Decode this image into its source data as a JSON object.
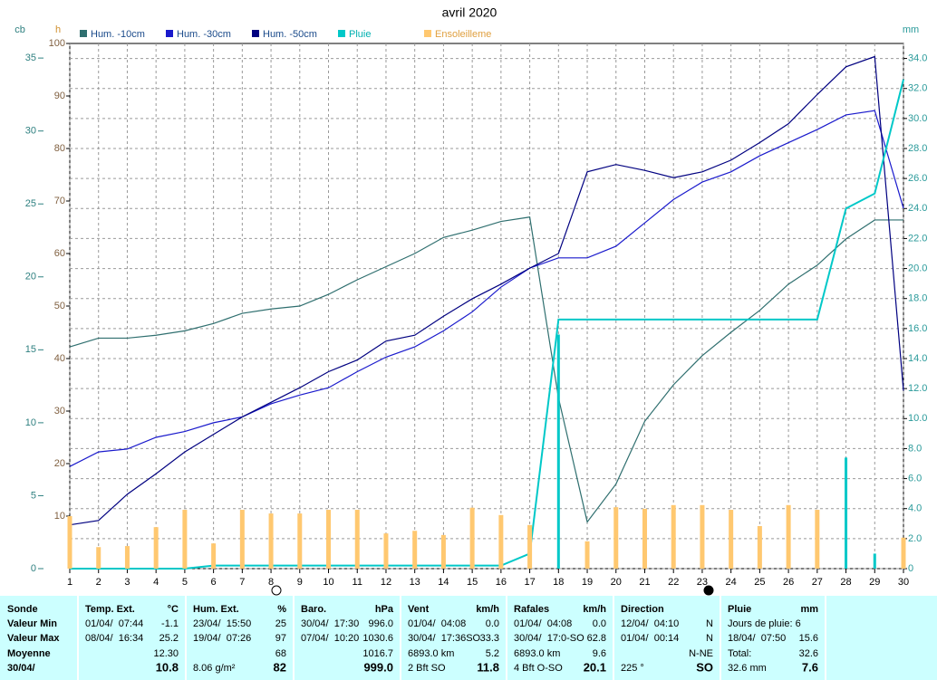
{
  "chart_data": {
    "type": "line",
    "title": "avril 2020",
    "ylabel": "cb",
    "y3label": "h",
    "y2label": "mm",
    "x": [
      1,
      2,
      3,
      4,
      5,
      6,
      7,
      8,
      9,
      10,
      11,
      12,
      13,
      14,
      15,
      16,
      17,
      18,
      19,
      20,
      21,
      22,
      23,
      24,
      25,
      26,
      27,
      28,
      29,
      30
    ],
    "xlim": [
      1,
      30
    ],
    "ylim": [
      0,
      36
    ],
    "yticks": [
      0,
      5,
      10,
      15,
      20,
      25,
      30,
      35
    ],
    "y3lim": [
      0,
      100
    ],
    "y3ticks": [
      10,
      20,
      30,
      40,
      50,
      60,
      70,
      80,
      90,
      100
    ],
    "y2lim": [
      0,
      35
    ],
    "y2ticks": [
      0,
      {
        "value": 2,
        "label": "2.0"
      },
      {
        "value": 4,
        "label": "4.0"
      },
      {
        "value": 6,
        "label": "6.0"
      },
      {
        "value": 8,
        "label": "8.0"
      },
      {
        "value": 10,
        "label": "10.0"
      },
      {
        "value": 12,
        "label": "12.0"
      },
      {
        "value": 14,
        "label": "14.0"
      },
      {
        "value": 16,
        "label": "16.0"
      },
      {
        "value": 18,
        "label": "18.0"
      },
      {
        "value": 20,
        "label": "20.0"
      },
      {
        "value": 22,
        "label": "22.0"
      },
      {
        "value": 24,
        "label": "24.0"
      },
      {
        "value": 26,
        "label": "26.0"
      },
      {
        "value": 28,
        "label": "28.0"
      },
      {
        "value": 30,
        "label": "30.0"
      },
      {
        "value": 32,
        "label": "32.0"
      },
      {
        "value": 34,
        "label": "34.0"
      }
    ],
    "grid": true,
    "series": [
      {
        "name": "Hum. -10cm",
        "color": "#2f6f6f",
        "type": "line",
        "values": [
          15.2,
          15.8,
          15.8,
          16.0,
          16.3,
          16.8,
          17.5,
          17.8,
          18.0,
          18.8,
          19.8,
          20.7,
          21.6,
          22.7,
          23.2,
          23.8,
          24.1,
          11.7,
          3.2,
          5.8,
          10.1,
          12.6,
          14.6,
          16.2,
          17.7,
          19.5,
          20.8,
          22.6,
          23.9,
          23.9
        ]
      },
      {
        "name": "Hum. -30cm",
        "color": "#1a1acc",
        "type": "line",
        "values": [
          7.0,
          8.0,
          8.2,
          9.0,
          9.4,
          10.0,
          10.4,
          11.3,
          11.9,
          12.4,
          13.5,
          14.5,
          15.2,
          16.3,
          17.6,
          19.3,
          20.6,
          21.3,
          21.3,
          22.1,
          23.7,
          25.3,
          26.5,
          27.2,
          28.3,
          29.2,
          30.1,
          31.1,
          31.4,
          24.7
        ]
      },
      {
        "name": "Hum. -50cm",
        "color": "#000080",
        "type": "line",
        "values": [
          3.0,
          3.3,
          5.1,
          6.5,
          8.0,
          9.2,
          10.4,
          11.4,
          12.4,
          13.5,
          14.3,
          15.6,
          16.0,
          17.3,
          18.5,
          19.5,
          20.6,
          21.6,
          27.2,
          27.7,
          27.3,
          26.8,
          27.2,
          28.0,
          29.2,
          30.5,
          32.5,
          34.4,
          35.1,
          12.2
        ]
      },
      {
        "name": "Pluie",
        "color": "#00c8c8",
        "type": "line",
        "axis": "y2",
        "values": [
          0,
          0,
          0,
          0,
          0,
          0.2,
          0.2,
          0.2,
          0.2,
          0.2,
          0.2,
          0.2,
          0.2,
          0.2,
          0.2,
          0.2,
          1.0,
          16.6,
          16.6,
          16.6,
          16.6,
          16.6,
          16.6,
          16.6,
          16.6,
          16.6,
          16.6,
          24.0,
          25.0,
          32.6
        ],
        "bar_values": [
          null,
          null,
          null,
          null,
          null,
          null,
          null,
          null,
          null,
          null,
          null,
          null,
          null,
          null,
          null,
          null,
          null,
          15.6,
          null,
          null,
          null,
          null,
          null,
          null,
          null,
          null,
          null,
          7.4,
          1.0,
          null
        ]
      },
      {
        "name": "Ensoleilleme",
        "color": "#ffc870",
        "type": "bar",
        "axis": "y3",
        "values": [
          10.0,
          4.1,
          4.3,
          7.9,
          11.2,
          4.8,
          11.2,
          10.5,
          10.5,
          11.2,
          11.2,
          6.7,
          7.2,
          6.4,
          11.6,
          10.2,
          8.3,
          0,
          5.2,
          11.7,
          11.4,
          12.1,
          12.1,
          11.2,
          8.1,
          12.1,
          11.2,
          0,
          0,
          5.9
        ]
      }
    ]
  },
  "table": {
    "labels": [
      "Sonde",
      "Valeur Min",
      "Valeur Max",
      "Moyenne",
      "30/04/"
    ],
    "columns": [
      {
        "header": "Temp. Ext.",
        "unit": "°C",
        "rows": [
          {
            "left": "01/04/  07:44",
            "right": "-1.1"
          },
          {
            "left": "08/04/  16:34",
            "right": "25.2"
          },
          {
            "right": "12.30"
          },
          {
            "right": "10.8"
          }
        ]
      },
      {
        "header": "Hum. Ext.",
        "unit": "%",
        "rows": [
          {
            "left": "23/04/  15:50",
            "right": "25"
          },
          {
            "left": "19/04/  07:26",
            "right": "97"
          },
          {
            "right": "68"
          },
          {
            "left": "8.06 g/m²",
            "right": "82"
          }
        ]
      },
      {
        "header": "Baro.",
        "unit": "hPa",
        "rows": [
          {
            "left": "30/04/  17:30",
            "right": "996.0"
          },
          {
            "left": "07/04/  10:20",
            "right": "1030.6"
          },
          {
            "right": "1016.7"
          },
          {
            "right": "999.0"
          }
        ]
      },
      {
        "header": "Vent",
        "unit": "km/h",
        "rows": [
          {
            "left": "01/04/  04:08",
            "right": "0.0"
          },
          {
            "left": "30/04/  17:36SO",
            "right": "33.3"
          },
          {
            "left": "6893.0 km",
            "right": "5.2"
          },
          {
            "left": "2 Bft SO",
            "right": "11.8"
          }
        ]
      },
      {
        "header": "Rafales",
        "unit": "km/h",
        "rows": [
          {
            "left": "01/04/  04:08",
            "right": "0.0"
          },
          {
            "left": "30/04/  17:0-SO",
            "right": "62.8"
          },
          {
            "left": "6893.0 km",
            "right": "9.6"
          },
          {
            "left": "4 Bft O-SO",
            "right": "20.1"
          }
        ]
      },
      {
        "header": "Direction",
        "rows": [
          {
            "left": "12/04/  04:10",
            "right": "N"
          },
          {
            "left": "01/04/  00:14",
            "right": "N"
          },
          {
            "right": "N-NE"
          },
          {
            "left": "225 °",
            "right": "SO"
          }
        ]
      },
      {
        "header": "Pluie",
        "unit": "mm",
        "rows": [
          {
            "left": "Jours de pluie: 6"
          },
          {
            "left": "18/04/  07:50",
            "right": "15.6"
          },
          {
            "left": "Total:",
            "right": "32.6"
          },
          {
            "left": "32.6 mm",
            "right": "7.6"
          }
        ]
      }
    ]
  }
}
